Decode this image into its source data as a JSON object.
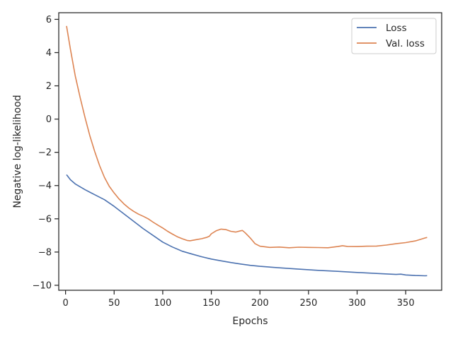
{
  "chart_data": {
    "type": "line",
    "xlabel": "Epochs",
    "ylabel": "Negative log-likelihood",
    "xlim": [
      -7,
      387
    ],
    "ylim": [
      -10.3,
      6.4
    ],
    "xticks": [
      0,
      50,
      100,
      150,
      200,
      250,
      300,
      350
    ],
    "yticks": [
      -10,
      -8,
      -6,
      -4,
      -2,
      0,
      2,
      4,
      6
    ],
    "xtick_labels": [
      "0",
      "50",
      "100",
      "150",
      "200",
      "250",
      "300",
      "350"
    ],
    "ytick_labels": [
      "−10",
      "−8",
      "−6",
      "−4",
      "−2",
      "0",
      "2",
      "4",
      "6"
    ],
    "grid": false,
    "legend_position": "top-right",
    "series": [
      {
        "name": "Loss",
        "color": "#4c72b0",
        "points": [
          [
            1,
            -3.35
          ],
          [
            5,
            -3.65
          ],
          [
            10,
            -3.9
          ],
          [
            20,
            -4.25
          ],
          [
            30,
            -4.55
          ],
          [
            40,
            -4.85
          ],
          [
            50,
            -5.25
          ],
          [
            60,
            -5.7
          ],
          [
            70,
            -6.15
          ],
          [
            80,
            -6.6
          ],
          [
            90,
            -7.0
          ],
          [
            100,
            -7.4
          ],
          [
            110,
            -7.7
          ],
          [
            120,
            -7.95
          ],
          [
            130,
            -8.12
          ],
          [
            140,
            -8.28
          ],
          [
            150,
            -8.42
          ],
          [
            160,
            -8.53
          ],
          [
            170,
            -8.63
          ],
          [
            180,
            -8.72
          ],
          [
            190,
            -8.8
          ],
          [
            200,
            -8.86
          ],
          [
            220,
            -8.95
          ],
          [
            240,
            -9.03
          ],
          [
            260,
            -9.1
          ],
          [
            280,
            -9.16
          ],
          [
            300,
            -9.23
          ],
          [
            320,
            -9.29
          ],
          [
            340,
            -9.35
          ],
          [
            345,
            -9.33
          ],
          [
            350,
            -9.38
          ],
          [
            360,
            -9.41
          ],
          [
            370,
            -9.43
          ],
          [
            372,
            -9.42
          ]
        ]
      },
      {
        "name": "Val. loss",
        "color": "#dd8452",
        "points": [
          [
            1,
            5.6
          ],
          [
            5,
            4.2
          ],
          [
            10,
            2.6
          ],
          [
            15,
            1.3
          ],
          [
            20,
            0.1
          ],
          [
            25,
            -1.0
          ],
          [
            30,
            -1.95
          ],
          [
            35,
            -2.8
          ],
          [
            40,
            -3.5
          ],
          [
            45,
            -4.05
          ],
          [
            50,
            -4.45
          ],
          [
            55,
            -4.8
          ],
          [
            60,
            -5.1
          ],
          [
            65,
            -5.35
          ],
          [
            70,
            -5.55
          ],
          [
            75,
            -5.72
          ],
          [
            80,
            -5.85
          ],
          [
            85,
            -6.0
          ],
          [
            90,
            -6.2
          ],
          [
            95,
            -6.38
          ],
          [
            100,
            -6.55
          ],
          [
            105,
            -6.75
          ],
          [
            110,
            -6.92
          ],
          [
            115,
            -7.08
          ],
          [
            120,
            -7.2
          ],
          [
            125,
            -7.3
          ],
          [
            128,
            -7.32
          ],
          [
            135,
            -7.25
          ],
          [
            140,
            -7.2
          ],
          [
            145,
            -7.12
          ],
          [
            148,
            -7.05
          ],
          [
            150,
            -6.9
          ],
          [
            155,
            -6.72
          ],
          [
            160,
            -6.62
          ],
          [
            165,
            -6.65
          ],
          [
            170,
            -6.75
          ],
          [
            175,
            -6.8
          ],
          [
            180,
            -6.72
          ],
          [
            182,
            -6.7
          ],
          [
            185,
            -6.85
          ],
          [
            190,
            -7.15
          ],
          [
            195,
            -7.5
          ],
          [
            200,
            -7.65
          ],
          [
            210,
            -7.72
          ],
          [
            220,
            -7.7
          ],
          [
            230,
            -7.74
          ],
          [
            240,
            -7.71
          ],
          [
            250,
            -7.72
          ],
          [
            260,
            -7.73
          ],
          [
            270,
            -7.74
          ],
          [
            280,
            -7.67
          ],
          [
            285,
            -7.62
          ],
          [
            290,
            -7.66
          ],
          [
            300,
            -7.67
          ],
          [
            310,
            -7.65
          ],
          [
            320,
            -7.64
          ],
          [
            330,
            -7.58
          ],
          [
            340,
            -7.5
          ],
          [
            350,
            -7.43
          ],
          [
            360,
            -7.33
          ],
          [
            370,
            -7.15
          ],
          [
            372,
            -7.12
          ]
        ]
      }
    ]
  }
}
